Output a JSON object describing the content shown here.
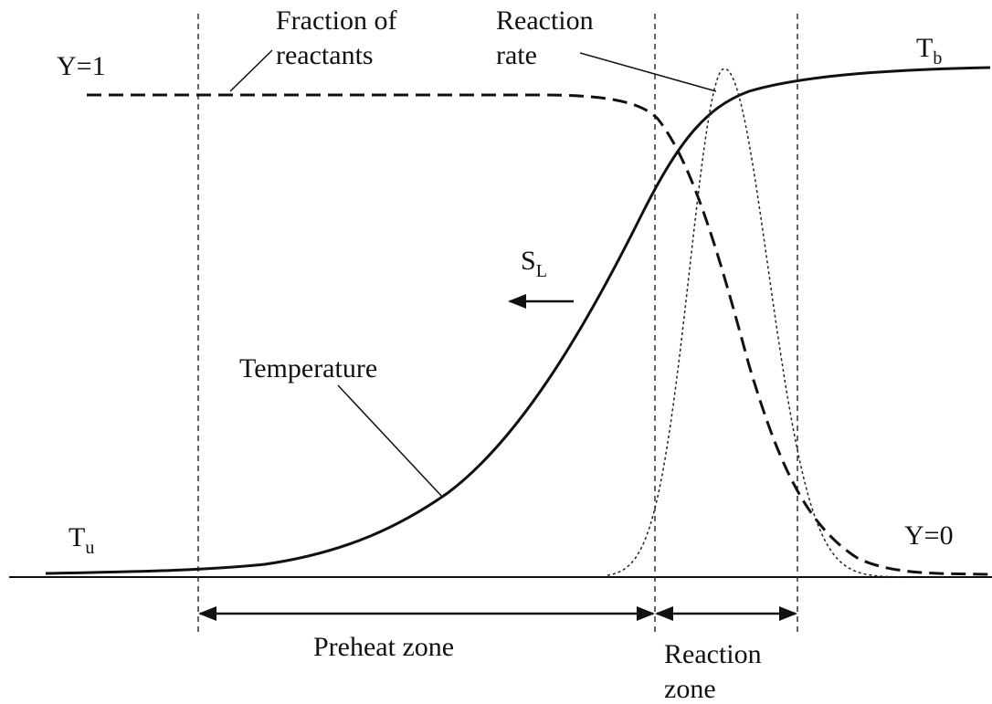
{
  "labels": {
    "fraction": [
      "Fraction of",
      "reactants"
    ],
    "rate": [
      "Reaction",
      "rate"
    ],
    "y1": "Y=1",
    "tb": {
      "base": "T",
      "sub": "b"
    },
    "sl": {
      "base": "S",
      "sub": "L"
    },
    "temperature": "Temperature",
    "tu": {
      "base": "T",
      "sub": "u"
    },
    "y0": "Y=0",
    "preheat": "Preheat zone",
    "reaction_zone": [
      "Reaction",
      "zone"
    ]
  }
}
